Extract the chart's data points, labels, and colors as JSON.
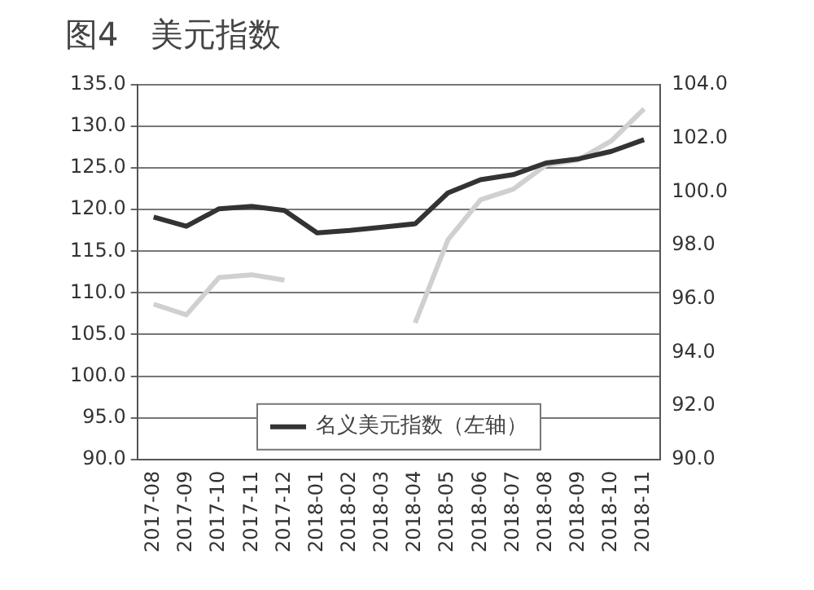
{
  "chart_data": {
    "type": "line",
    "title": "图4　美元指数",
    "categories": [
      "2017-08",
      "2017-09",
      "2017-10",
      "2017-11",
      "2017-12",
      "2018-01",
      "2018-02",
      "2018-03",
      "2018-04",
      "2018-05",
      "2018-06",
      "2018-07",
      "2018-08",
      "2018-09",
      "2018-10",
      "2018-11"
    ],
    "series": [
      {
        "name": "名义美元指数（左轴）",
        "color": "#333333",
        "values": [
          119.1,
          118.0,
          120.1,
          120.4,
          119.9,
          117.2,
          117.5,
          117.9,
          118.3,
          122.0,
          123.6,
          124.2,
          125.6,
          126.1,
          127.0,
          128.4
        ]
      },
      {
        "color": "#d0d0d0",
        "axis": "y2",
        "values": [
          95.8,
          95.4,
          96.8,
          96.9,
          96.7,
          null,
          null,
          null,
          95.1,
          98.2,
          99.7,
          100.1,
          101.0,
          101.2,
          101.9,
          103.1
        ]
      }
    ],
    "ylim": [
      90,
      135
    ],
    "yticks": [
      {
        "value": 90,
        "label": "90.0"
      },
      {
        "value": 95,
        "label": "95.0"
      },
      {
        "value": 100,
        "label": "100.0"
      },
      {
        "value": 105,
        "label": "105.0"
      },
      {
        "value": 110,
        "label": "110.0"
      },
      {
        "value": 115,
        "label": "115.0"
      },
      {
        "value": 120,
        "label": "120.0"
      },
      {
        "value": 125,
        "label": "125.0"
      },
      {
        "value": 130,
        "label": "130.0"
      },
      {
        "value": 135,
        "label": "135.0"
      }
    ],
    "y2lim": [
      90,
      104
    ],
    "y2ticks": [
      {
        "value": 90,
        "label": "90.0"
      },
      {
        "value": 92,
        "label": "92.0"
      },
      {
        "value": 94,
        "label": "94.0"
      },
      {
        "value": 96,
        "label": "96.0"
      },
      {
        "value": 98,
        "label": "98.0"
      },
      {
        "value": 100,
        "label": "100.0"
      },
      {
        "value": 102,
        "label": "102.0"
      },
      {
        "value": 104,
        "label": "104.0"
      }
    ],
    "grid": "y",
    "legend": "bottom",
    "marker": "none",
    "line_style": "solid"
  }
}
